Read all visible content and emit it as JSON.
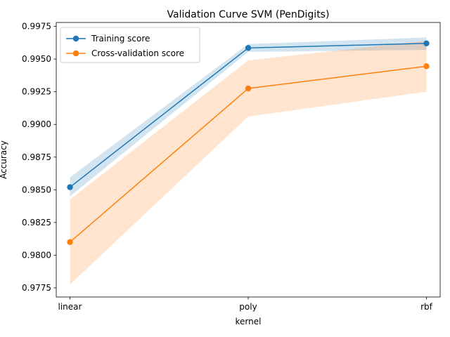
{
  "chart_data": {
    "type": "line",
    "title": "Validation Curve SVM (PenDigits)",
    "xlabel": "kernel",
    "ylabel": "Accuracy",
    "categories": [
      "linear",
      "poly",
      "rbf"
    ],
    "ylim": [
      0.9768,
      0.9978
    ],
    "yticks": [
      0.9775,
      0.98,
      0.9825,
      0.985,
      0.9875,
      0.99,
      0.9925,
      0.995,
      0.9975
    ],
    "ytick_labels": [
      "0.9775",
      "0.9800",
      "0.9825",
      "0.9850",
      "0.9875",
      "0.9900",
      "0.9925",
      "0.9950",
      "0.9975"
    ],
    "grid": false,
    "legend_position": "upper-left",
    "series": [
      {
        "name": "Training score",
        "color": "#1f77b4",
        "band_color": "#1f77b4",
        "values": [
          0.9852,
          0.99585,
          0.9962
        ],
        "lower": [
          0.9845,
          0.99555,
          0.9957
        ],
        "upper": [
          0.98595,
          0.99615,
          0.99665
        ]
      },
      {
        "name": "Cross-validation score",
        "color": "#ff7f0e",
        "band_color": "#ff7f0e",
        "values": [
          0.981,
          0.99275,
          0.99445
        ],
        "lower": [
          0.97775,
          0.9906,
          0.9925
        ],
        "upper": [
          0.98425,
          0.9949,
          0.9964
        ]
      }
    ]
  }
}
